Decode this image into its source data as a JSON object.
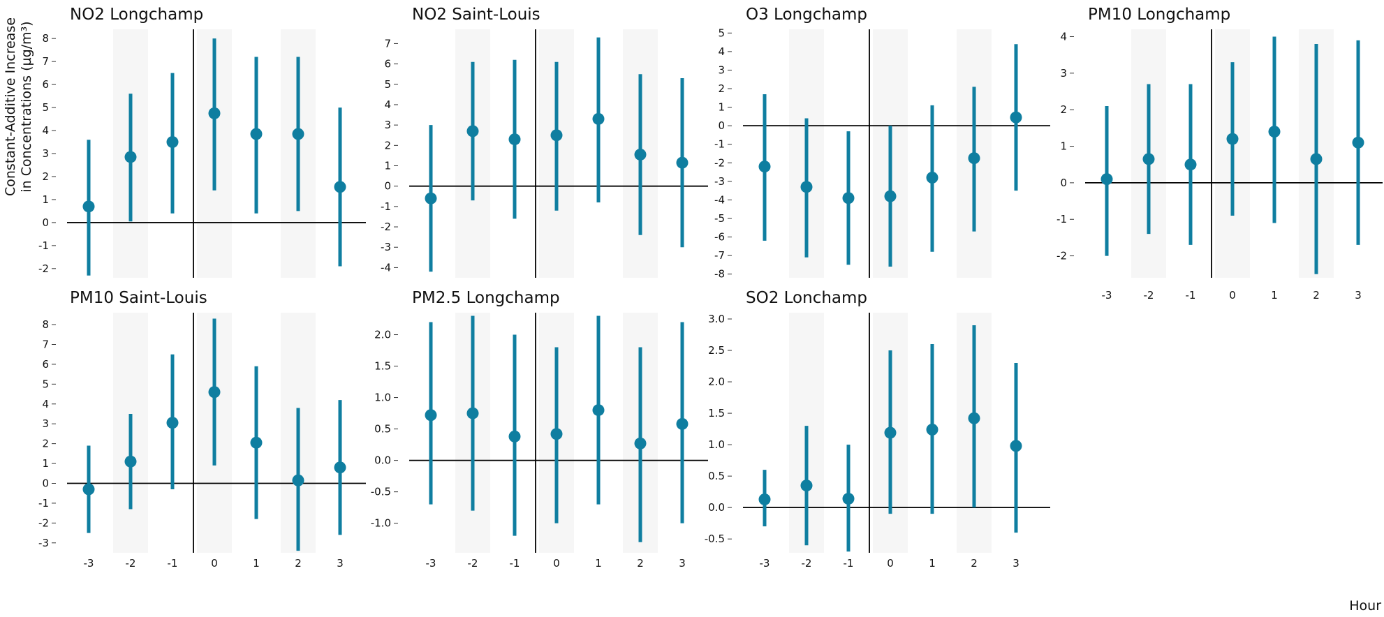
{
  "figure": {
    "ylabel_line1": "Constant-Additive Increase",
    "ylabel_line2": "in Concentrations (µg/m³)",
    "xlabel": "Hour",
    "colors": {
      "point": "#0f7ea0",
      "shade": "#f6f6f6",
      "axis": "#000000"
    }
  },
  "chart_data": [
    {
      "type": "scatter",
      "title": "NO2 Longchamp",
      "xlabel": "",
      "ylabel": "Constant-Additive Increase in Concentrations (µg/m³)",
      "x": [
        -3,
        -2,
        -1,
        0,
        1,
        2,
        3
      ],
      "y": [
        0.7,
        2.85,
        3.5,
        4.75,
        3.85,
        3.85,
        1.55
      ],
      "low": [
        -2.3,
        0.05,
        0.4,
        1.4,
        0.4,
        0.5,
        -1.9
      ],
      "high": [
        3.6,
        5.6,
        6.5,
        8.0,
        7.2,
        7.2,
        5.0
      ],
      "yticks": [
        -2,
        -1,
        0,
        1,
        2,
        3,
        4,
        5,
        6,
        7,
        8
      ],
      "ytick_labels": [
        "-2",
        "-1",
        "0",
        "1",
        "2",
        "3",
        "4",
        "5",
        "6",
        "7",
        "8"
      ],
      "ylim": [
        -2.4,
        8.4
      ],
      "xtick_labels": [],
      "shaded_x": [
        -2,
        0,
        2
      ],
      "grid": false
    },
    {
      "type": "scatter",
      "title": "NO2 Saint-Louis",
      "xlabel": "",
      "ylabel": "",
      "x": [
        -3,
        -2,
        -1,
        0,
        1,
        2,
        3
      ],
      "y": [
        -0.6,
        2.7,
        2.3,
        2.5,
        3.3,
        1.55,
        1.15
      ],
      "low": [
        -4.2,
        -0.7,
        -1.6,
        -1.2,
        -0.8,
        -2.4,
        -3.0
      ],
      "high": [
        3.0,
        6.1,
        6.2,
        6.1,
        7.3,
        5.5,
        5.3
      ],
      "yticks": [
        -4,
        -3,
        -2,
        -1,
        0,
        1,
        2,
        3,
        4,
        5,
        6,
        7
      ],
      "ytick_labels": [
        "-4",
        "-3",
        "-2",
        "-1",
        "0",
        "1",
        "2",
        "3",
        "4",
        "5",
        "6",
        "7"
      ],
      "ylim": [
        -4.5,
        7.7
      ],
      "xtick_labels": [],
      "shaded_x": [
        -2,
        0,
        2
      ],
      "grid": false
    },
    {
      "type": "scatter",
      "title": "O3 Longchamp",
      "xlabel": "",
      "ylabel": "",
      "x": [
        -3,
        -2,
        -1,
        0,
        1,
        2,
        3
      ],
      "y": [
        -2.2,
        -3.3,
        -3.9,
        -3.8,
        -2.8,
        -1.75,
        0.45
      ],
      "low": [
        -6.2,
        -7.1,
        -7.5,
        -7.6,
        -6.8,
        -5.7,
        -3.5
      ],
      "high": [
        1.7,
        0.4,
        -0.3,
        0.0,
        1.1,
        2.1,
        4.4
      ],
      "yticks": [
        -8,
        -7,
        -6,
        -5,
        -4,
        -3,
        -2,
        -1,
        0,
        1,
        2,
        3,
        4,
        5
      ],
      "ytick_labels": [
        "-8",
        "-7",
        "-6",
        "-5",
        "-4",
        "-3",
        "-2",
        "-1",
        "0",
        "1",
        "2",
        "3",
        "4",
        "5"
      ],
      "ylim": [
        -8.2,
        5.2
      ],
      "xtick_labels": [],
      "shaded_x": [
        -2,
        0,
        2
      ],
      "grid": false
    },
    {
      "type": "scatter",
      "title": "PM10 Longchamp",
      "xlabel": "",
      "ylabel": "",
      "x": [
        -3,
        -2,
        -1,
        0,
        1,
        2,
        3
      ],
      "y": [
        0.1,
        0.65,
        0.5,
        1.2,
        1.4,
        0.65,
        1.1
      ],
      "low": [
        -2.0,
        -1.4,
        -1.7,
        -0.9,
        -1.1,
        -2.5,
        -1.7
      ],
      "high": [
        2.1,
        2.7,
        2.7,
        3.3,
        4.0,
        3.8,
        3.9
      ],
      "yticks": [
        -2,
        -1,
        0,
        1,
        2,
        3,
        4
      ],
      "ytick_labels": [
        "-2",
        "-1",
        "0",
        "1",
        "2",
        "3",
        "4"
      ],
      "ylim": [
        -2.6,
        4.2
      ],
      "xtick_labels": [
        "-3",
        "-2",
        "-1",
        "0",
        "1",
        "2",
        "3"
      ],
      "shaded_x": [
        -2,
        0,
        2
      ],
      "grid": false
    },
    {
      "type": "scatter",
      "title": "PM10 Saint-Louis",
      "xlabel": "",
      "ylabel": "",
      "x": [
        -3,
        -2,
        -1,
        0,
        1,
        2,
        3
      ],
      "y": [
        -0.3,
        1.1,
        3.05,
        4.6,
        2.05,
        0.15,
        0.8
      ],
      "low": [
        -2.5,
        -1.3,
        -0.3,
        0.9,
        -1.8,
        -3.4,
        -2.6
      ],
      "high": [
        1.9,
        3.5,
        6.5,
        8.3,
        5.9,
        3.8,
        4.2
      ],
      "yticks": [
        -3,
        -2,
        -1,
        0,
        1,
        2,
        3,
        4,
        5,
        6,
        7,
        8
      ],
      "ytick_labels": [
        "-3",
        "-2",
        "-1",
        "0",
        "1",
        "2",
        "3",
        "4",
        "5",
        "6",
        "7",
        "8"
      ],
      "ylim": [
        -3.5,
        8.6
      ],
      "xtick_labels": [
        "-3",
        "-2",
        "-1",
        "0",
        "1",
        "2",
        "3"
      ],
      "shaded_x": [
        -2,
        0,
        2
      ],
      "grid": false
    },
    {
      "type": "scatter",
      "title": "PM2.5 Longchamp",
      "xlabel": "",
      "ylabel": "",
      "x": [
        -3,
        -2,
        -1,
        0,
        1,
        2,
        3
      ],
      "y": [
        0.72,
        0.75,
        0.38,
        0.42,
        0.8,
        0.27,
        0.58
      ],
      "low": [
        -0.7,
        -0.8,
        -1.2,
        -1.0,
        -0.7,
        -1.3,
        -1.0
      ],
      "high": [
        2.2,
        2.3,
        2.0,
        1.8,
        2.3,
        1.8,
        2.2
      ],
      "yticks": [
        -1.0,
        -0.5,
        0.0,
        0.5,
        1.0,
        1.5,
        2.0
      ],
      "ytick_labels": [
        "-1.0",
        "-0.5",
        "0.0",
        "0.5",
        "1.0",
        "1.5",
        "2.0"
      ],
      "ylim": [
        -1.47,
        2.35
      ],
      "xtick_labels": [
        "-3",
        "-2",
        "-1",
        "0",
        "1",
        "2",
        "3"
      ],
      "shaded_x": [
        -2,
        0,
        2
      ],
      "grid": false
    },
    {
      "type": "scatter",
      "title": "SO2 Lonchamp",
      "xlabel": "",
      "ylabel": "",
      "x": [
        -3,
        -2,
        -1,
        0,
        1,
        2,
        3
      ],
      "y": [
        0.13,
        0.35,
        0.14,
        1.19,
        1.24,
        1.42,
        0.98
      ],
      "low": [
        -0.3,
        -0.6,
        -0.7,
        -0.1,
        -0.1,
        0.0,
        -0.4
      ],
      "high": [
        0.6,
        1.3,
        1.0,
        2.5,
        2.6,
        2.9,
        2.3
      ],
      "yticks": [
        -0.5,
        0.0,
        0.5,
        1.0,
        1.5,
        2.0,
        2.5,
        3.0
      ],
      "ytick_labels": [
        "-0.5",
        "0.0",
        "0.5",
        "1.0",
        "1.5",
        "2.0",
        "2.5",
        "3.0"
      ],
      "ylim": [
        -0.72,
        3.1
      ],
      "xtick_labels": [
        "-3",
        "-2",
        "-1",
        "0",
        "1",
        "2",
        "3"
      ],
      "shaded_x": [
        -2,
        0,
        2
      ],
      "grid": false
    }
  ]
}
